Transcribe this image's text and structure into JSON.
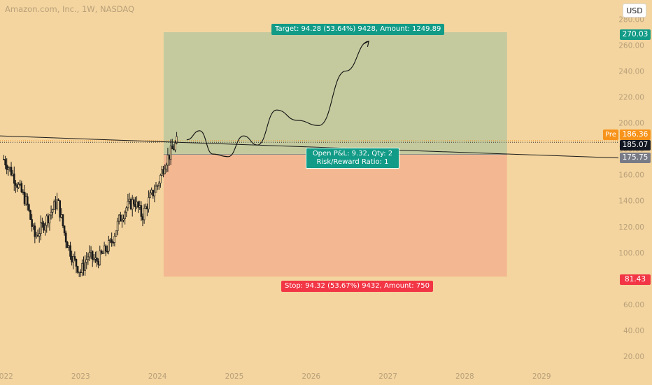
{
  "header": {
    "title": "Amazon.com, Inc., 1W, NASDAQ",
    "currency": "USD"
  },
  "labels": {
    "target": "Target: 94.28 (53.64%) 9428, Amount: 1249.89",
    "stop": "Stop: 94.32 (53.67%) 9432, Amount: 750",
    "open_pnl": "Open P&L: 9.32, Qty: 2",
    "risk_reward": "Risk/Reward Ratio: 1",
    "pre": "Pre"
  },
  "price_tags": {
    "target": "270.03",
    "pre": "186.36",
    "last": "185.07",
    "entry": "175.75",
    "stop": "81.43"
  },
  "colors": {
    "background": "#f4d59f",
    "target_zone": "#c4ca9e",
    "stop_zone": "#f3b892",
    "target_tag": "#129b87",
    "stop_tag": "#f23645",
    "entry_tag": "#787b86",
    "last_tag": "#131722",
    "pre_tag": "#f7931a"
  },
  "chart_data": {
    "type": "candlestick",
    "title": "Amazon.com, Inc., 1W, NASDAQ",
    "y_axis": {
      "ticks": [
        20,
        40,
        60,
        80,
        100,
        120,
        140,
        160,
        180,
        200,
        220,
        240,
        260,
        280
      ],
      "range": [
        14,
        283
      ]
    },
    "x_axis": {
      "ticks": [
        "2022",
        "2023",
        "2024",
        "2025",
        "2026",
        "2027",
        "2028",
        "2029"
      ],
      "range": [
        2021.95,
        2030.0
      ]
    },
    "position": {
      "entry": 175.75,
      "target": 270.03,
      "stop": 81.43,
      "start": 2024.08,
      "end": 2028.55
    },
    "pre_market": 186.36,
    "last_price": 185.07,
    "price_path": [
      [
        2022.0,
        172
      ],
      [
        2022.1,
        162
      ],
      [
        2022.2,
        150
      ],
      [
        2022.3,
        138
      ],
      [
        2022.4,
        112
      ],
      [
        2022.5,
        120
      ],
      [
        2022.6,
        130
      ],
      [
        2022.7,
        140
      ],
      [
        2022.8,
        112
      ],
      [
        2022.9,
        95
      ],
      [
        2023.0,
        85
      ],
      [
        2023.1,
        98
      ],
      [
        2023.2,
        93
      ],
      [
        2023.3,
        100
      ],
      [
        2023.4,
        108
      ],
      [
        2023.5,
        125
      ],
      [
        2023.6,
        135
      ],
      [
        2023.7,
        140
      ],
      [
        2023.8,
        128
      ],
      [
        2023.9,
        142
      ],
      [
        2024.0,
        152
      ],
      [
        2024.1,
        170
      ],
      [
        2024.2,
        180
      ],
      [
        2024.25,
        185
      ]
    ],
    "trendline": [
      [
        2021.95,
        190
      ],
      [
        2030.0,
        173
      ]
    ],
    "projection": [
      [
        2024.38,
        187
      ],
      [
        2024.55,
        194
      ],
      [
        2024.72,
        176
      ],
      [
        2024.92,
        174
      ],
      [
        2025.12,
        190
      ],
      [
        2025.3,
        183
      ],
      [
        2025.55,
        210
      ],
      [
        2025.82,
        202
      ],
      [
        2026.1,
        198
      ],
      [
        2026.45,
        240
      ],
      [
        2026.75,
        263
      ]
    ]
  }
}
